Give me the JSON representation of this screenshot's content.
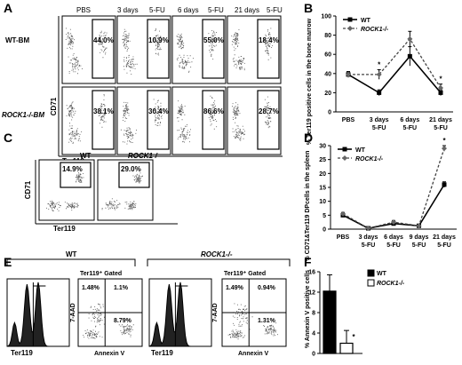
{
  "panel_letters": {
    "a": "A",
    "b": "B",
    "c": "C",
    "d": "D",
    "e": "E",
    "f": "F"
  },
  "panel_a": {
    "columns": [
      "PBS",
      "3 days",
      "5-FU",
      "6 days",
      "5-FU",
      "21 days",
      "5-FU"
    ],
    "rows": [
      {
        "label": "WT-BM",
        "values": [
          "44.0%",
          "10.9%",
          "55.0%",
          "18.4%"
        ]
      },
      {
        "label": "ROCK1-/-BM",
        "values": [
          "38.1%",
          "30.4%",
          "86.6%",
          "28.7%"
        ]
      }
    ],
    "ylabel": "CD71",
    "xlabel": "Ter119"
  },
  "panel_c": {
    "groups": [
      {
        "label": "WT",
        "value": "14.9%"
      },
      {
        "label": "ROCK1-/-",
        "value": "29.0%"
      }
    ],
    "ylabel": "CD71",
    "xlabel": "Ter119"
  },
  "panel_e": {
    "groups": [
      {
        "label": "WT",
        "gated": "Ter119⁺ Gated",
        "quadrants": [
          "1.48%",
          "1.1%",
          "8.79%"
        ]
      },
      {
        "label": "ROCK1-/-",
        "gated": "Ter119⁺ Gated",
        "quadrants": [
          "1.49%",
          "0.94%",
          "1.31%"
        ]
      }
    ],
    "hist_xlabel": "Ter119",
    "scatter_ylabel": "7-AAD",
    "scatter_xlabel": "Annexin V"
  },
  "chart_data": [
    {
      "panel": "B",
      "type": "line",
      "ylabel": "% Ter119 positive cells in the bone marrow",
      "ylim": [
        0,
        100
      ],
      "yticks": [
        "0",
        "20",
        "40",
        "60",
        "80",
        "100"
      ],
      "categories": [
        "PBS",
        "3 days 5-FU",
        "6 days 5-FU",
        "21 days 5-FU"
      ],
      "series": [
        {
          "name": "WT",
          "values": [
            39,
            20,
            58,
            20
          ],
          "errors": [
            3,
            3,
            10,
            3
          ]
        },
        {
          "name": "ROCK1-/-",
          "values": [
            39,
            39,
            76,
            25
          ],
          "errors": [
            3,
            5,
            8,
            4
          ]
        }
      ],
      "significance": [
        "",
        "*",
        "",
        "*"
      ],
      "legend": "top-left"
    },
    {
      "panel": "D",
      "type": "line",
      "ylabel": "% CD71&Ter119 DPcells in the spleen",
      "ylim": [
        0,
        30
      ],
      "yticks": [
        "0",
        "5",
        "10",
        "15",
        "20",
        "25",
        "30"
      ],
      "categories": [
        "PBS",
        "3 days 5-FU",
        "6 days 5-FU",
        "9 days 5-FU",
        "21 days 5-FU"
      ],
      "series": [
        {
          "name": "WT",
          "values": [
            5,
            0.3,
            2,
            1.2,
            16
          ],
          "errors": [
            0.5,
            0.2,
            0.5,
            0.3,
            1
          ]
        },
        {
          "name": "ROCK1-/-",
          "values": [
            5.5,
            0.3,
            2.5,
            1.2,
            29
          ],
          "errors": [
            0.5,
            0.2,
            0.6,
            0.3,
            1
          ]
        }
      ],
      "significance": [
        "",
        "",
        "",
        "",
        "*"
      ],
      "legend": "top-left"
    },
    {
      "panel": "F",
      "type": "bar",
      "ylabel": "% Annexin V positive cells",
      "ylim": [
        0,
        16
      ],
      "yticks": [
        "0",
        "4",
        "8",
        "12",
        "16"
      ],
      "categories": [
        "WT",
        "ROCK1-/-"
      ],
      "values": [
        12.2,
        2
      ],
      "errors": [
        3.2,
        2.5
      ],
      "colors": [
        "#000000",
        "#ffffff"
      ],
      "significance": [
        "",
        "*"
      ],
      "legend": "top-right"
    }
  ]
}
